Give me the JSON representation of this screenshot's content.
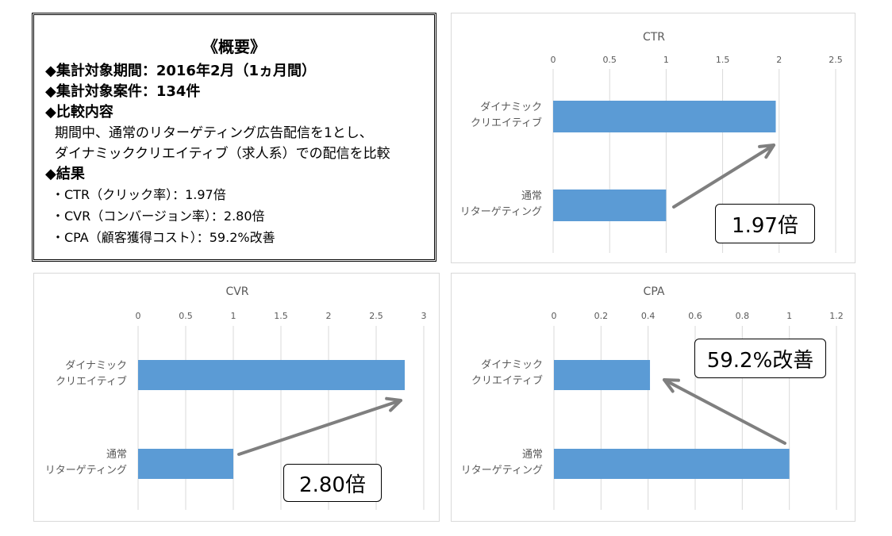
{
  "summary": {
    "title": "《概要》",
    "lines": [
      "◆集計対象期間：2016年2月（1ヵ月間）",
      "◆集計対象案件：134件",
      "◆比較内容",
      "期間中、通常のリターゲティング広告配信を1とし、",
      "ダイナミッククリエイティブ（求人系）での配信を比較",
      "◆結果",
      "・CTR（クリック率）：1.97倍",
      "・CVR（コンバージョン率）：2.80倍",
      "・CPA（顧客獲得コスト）：59.2%改善"
    ]
  },
  "chart_data": [
    {
      "id": "ctr",
      "type": "bar",
      "orientation": "horizontal",
      "title": "CTR",
      "categories": [
        "ダイナミック\nクリエイティブ",
        "通常\nリターゲティング"
      ],
      "values": [
        1.97,
        1.0
      ],
      "xlim": [
        0,
        2.5
      ],
      "ticks": [
        0,
        0.5,
        1,
        1.5,
        2,
        2.5
      ],
      "tick_labels": [
        "0",
        "0.5",
        "1",
        "1.5",
        "2",
        "2.5"
      ],
      "grid": true,
      "bar_color": "#5b9bd5",
      "callout": "1.97倍",
      "arrow": "from 通常リターゲティング bar end to ダイナミッククリエイティブ bar end"
    },
    {
      "id": "cvr",
      "type": "bar",
      "orientation": "horizontal",
      "title": "CVR",
      "categories": [
        "ダイナミック\nクリエイティブ",
        "通常\nリターゲティング"
      ],
      "values": [
        2.8,
        1.0
      ],
      "xlim": [
        0,
        3
      ],
      "ticks": [
        0,
        0.5,
        1,
        1.5,
        2,
        2.5,
        3
      ],
      "tick_labels": [
        "0",
        "0.5",
        "1",
        "1.5",
        "2",
        "2.5",
        "3"
      ],
      "grid": true,
      "bar_color": "#5b9bd5",
      "callout": "2.80倍",
      "arrow": "from 通常リターゲティング bar end to ダイナミッククリエイティブ bar end"
    },
    {
      "id": "cpa",
      "type": "bar",
      "orientation": "horizontal",
      "title": "CPA",
      "categories": [
        "ダイナミック\nクリエイティブ",
        "通常\nリターゲティング"
      ],
      "values": [
        0.408,
        1.0
      ],
      "xlim": [
        0,
        1.2
      ],
      "ticks": [
        0,
        0.2,
        0.4,
        0.6,
        0.8,
        1,
        1.2
      ],
      "tick_labels": [
        "0",
        "0.2",
        "0.4",
        "0.6",
        "0.8",
        "1",
        "1.2"
      ],
      "grid": true,
      "bar_color": "#5b9bd5",
      "callout": "59.2%改善",
      "arrow": "from 通常リターゲティング bar end to ダイナミッククリエイティブ bar end"
    }
  ],
  "colors": {
    "bar": "#5b9bd5",
    "grid": "#d9d9d9",
    "axis_text": "#595959",
    "arrow": "#7f7f7f"
  }
}
